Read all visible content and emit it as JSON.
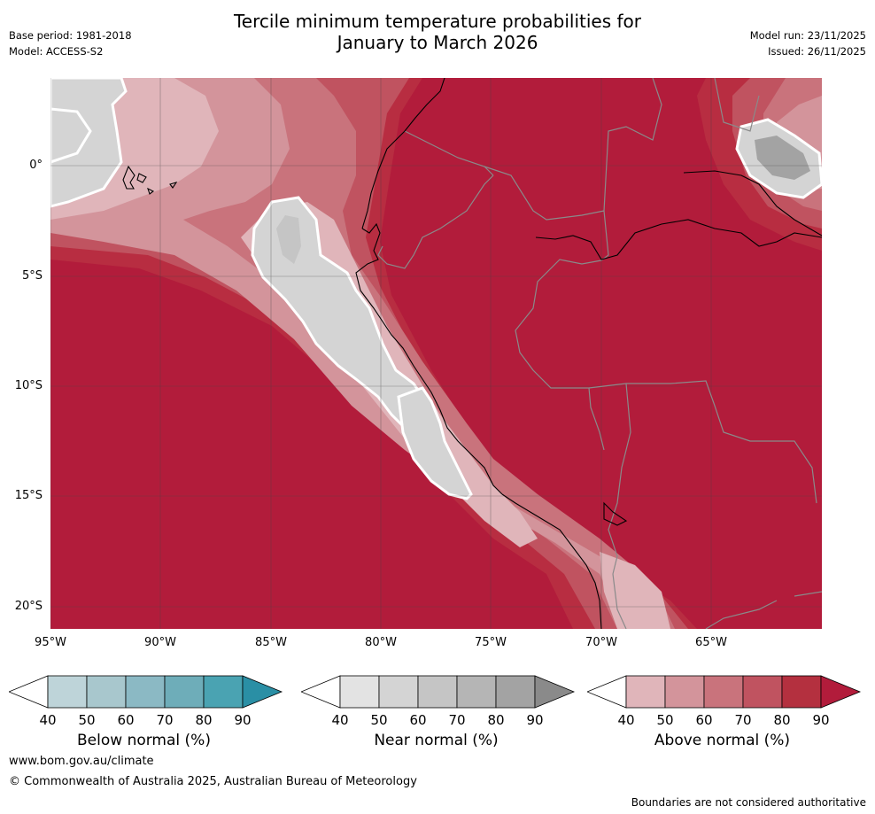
{
  "title_line1": "Tercile minimum temperature probabilities for",
  "title_line2": "January to March 2026",
  "meta": {
    "base_period": "Base period: 1981-2018",
    "model": "Model: ACCESS-S2",
    "model_run": "Model run: 23/11/2025",
    "issued": "Issued: 26/11/2025"
  },
  "map": {
    "lat_labels": [
      "0°",
      "5°S",
      "10°S",
      "15°S",
      "20°S"
    ],
    "lon_labels": [
      "95°W",
      "90°W",
      "85°W",
      "80°W",
      "75°W",
      "70°W",
      "65°W"
    ]
  },
  "colorbars": [
    {
      "title": "Below normal (%)",
      "ticks": [
        "40",
        "50",
        "60",
        "70",
        "80",
        "90"
      ],
      "colors": [
        "#bed4d9",
        "#a8c7cd",
        "#8bb9c4",
        "#6eadb9",
        "#4aa3b2",
        "#2a8fa5"
      ]
    },
    {
      "title": "Near normal (%)",
      "ticks": [
        "40",
        "50",
        "60",
        "70",
        "80",
        "90"
      ],
      "colors": [
        "#e3e3e3",
        "#d4d4d4",
        "#c5c5c5",
        "#b5b5b5",
        "#a3a3a3",
        "#8a8a8a"
      ]
    },
    {
      "title": "Above normal (%)",
      "ticks": [
        "40",
        "50",
        "60",
        "70",
        "80",
        "90"
      ],
      "colors": [
        "#e0b5ba",
        "#d3949b",
        "#c9737c",
        "#c05360",
        "#b4303f",
        "#b21c3b"
      ]
    }
  ],
  "footer": {
    "website": "www.bom.gov.au/climate",
    "copyright": "© Commonwealth of Australia 2025, Australian Bureau of Meteorology",
    "disclaimer": "Boundaries are not considered authoritative"
  }
}
